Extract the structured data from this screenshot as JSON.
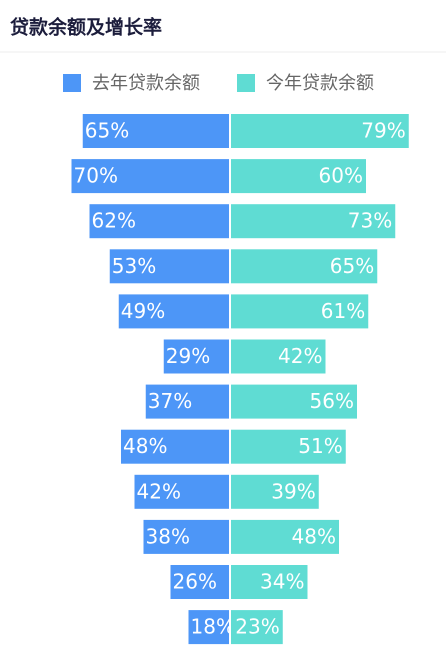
{
  "chart_data": {
    "type": "butterfly",
    "title": "贷款余额及增长率",
    "series": [
      {
        "name": "去年贷款余额",
        "color": "#4d96f7",
        "values": [
          65,
          70,
          62,
          53,
          49,
          29,
          37,
          48,
          42,
          38,
          26,
          18
        ],
        "value_labels": [
          "65%",
          "70%",
          "62%",
          "53%",
          "49%",
          "29%",
          "37%",
          "48%",
          "42%",
          "38%",
          "26%",
          "18%"
        ]
      },
      {
        "name": "今年贷款余额",
        "color": "#5fdcd3",
        "values": [
          79,
          60,
          73,
          65,
          61,
          42,
          56,
          51,
          39,
          48,
          34,
          23
        ],
        "value_labels": [
          "79%",
          "60%",
          "73%",
          "65%",
          "61%",
          "42%",
          "56%",
          "51%",
          "39%",
          "48%",
          "34%",
          "23%"
        ]
      }
    ]
  }
}
